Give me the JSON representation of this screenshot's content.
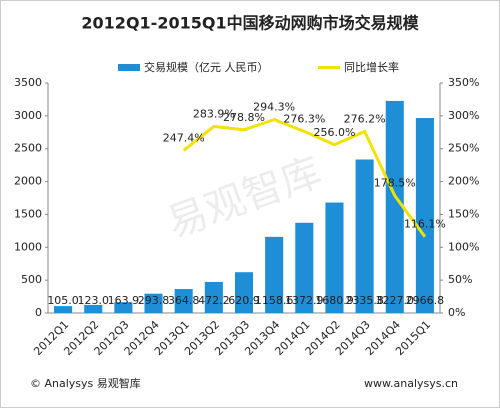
{
  "chart_data": {
    "type": "bar_line",
    "title": "2012Q1-2015Q1中国移动网购市场交易规模",
    "categories": [
      "2012Q1",
      "2012Q2",
      "2012Q3",
      "2012Q4",
      "2013Q1",
      "2013Q2",
      "2013Q3",
      "2013Q4",
      "2014Q1",
      "2014Q2",
      "2014Q3",
      "2014Q4",
      "2015Q1"
    ],
    "series": [
      {
        "name": "交易规模（亿元 人民币）",
        "color": "#1e8fd6",
        "type": "bar",
        "values": [
          105.0,
          123.0,
          163.9,
          293.8,
          364.8,
          472.2,
          620.9,
          1158.6,
          1372.9,
          1680.9,
          2335.8,
          3227.0,
          2966.8
        ],
        "value_labels": [
          "105.0",
          "123.0",
          "163.9",
          "293.8",
          "364.8",
          "472.2",
          "620.9",
          "1158.6",
          "1372.9",
          "1680.9",
          "2335.8",
          "3227.0",
          "2966.8"
        ]
      },
      {
        "name": "同比增长率",
        "color": "#f2e200",
        "type": "line",
        "axis": "y2",
        "values": [
          null,
          null,
          null,
          null,
          247.4,
          283.9,
          278.8,
          294.3,
          276.3,
          256.0,
          276.2,
          178.5,
          116.1
        ],
        "value_labels": [
          null,
          null,
          null,
          null,
          "247.4%",
          "283.9%",
          "278.8%",
          "294.3%",
          "276.3%",
          "256.0%",
          "276.2%",
          "178.5%",
          "116.1%"
        ]
      }
    ],
    "ylim": [
      0,
      3500
    ],
    "yticks": [
      0,
      500,
      1000,
      1500,
      2000,
      2500,
      3000,
      3500
    ],
    "y2lim": [
      0,
      350
    ],
    "y2ticks": [
      {
        "value": 0,
        "label": "0%"
      },
      {
        "value": 50,
        "label": "50%"
      },
      {
        "value": 100,
        "label": "100%"
      },
      {
        "value": 150,
        "label": "150%"
      },
      {
        "value": 200,
        "label": "200%"
      },
      {
        "value": 250,
        "label": "250%"
      },
      {
        "value": 300,
        "label": "300%"
      },
      {
        "value": 350,
        "label": "350%"
      }
    ],
    "watermark": "易观智库",
    "footer_left": "© Analysys 易观智库",
    "footer_right": "www.analysys.cn"
  }
}
